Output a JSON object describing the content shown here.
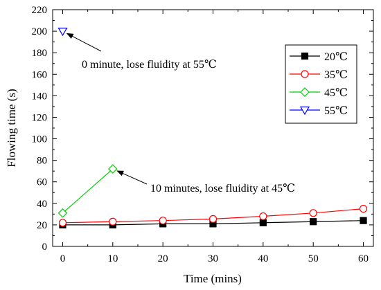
{
  "chart_data": {
    "type": "line",
    "title": "",
    "xlabel": "Time (mins)",
    "ylabel": "Flowing time (s)",
    "xlim": [
      -2,
      62
    ],
    "ylim": [
      0,
      220
    ],
    "xticks": [
      0,
      10,
      20,
      30,
      40,
      50,
      60
    ],
    "yticks": [
      0,
      20,
      40,
      60,
      80,
      100,
      120,
      140,
      160,
      180,
      200,
      220
    ],
    "grid": false,
    "legend": "right",
    "series": [
      {
        "name": "20℃",
        "color": "#000000",
        "marker": "square-filled",
        "x": [
          0,
          10,
          20,
          30,
          40,
          50,
          60
        ],
        "y": [
          20,
          20,
          21,
          21,
          22,
          23,
          24
        ]
      },
      {
        "name": "35℃",
        "color": "#ff0000",
        "marker": "circle-open",
        "x": [
          0,
          10,
          20,
          30,
          40,
          50,
          60
        ],
        "y": [
          22,
          23,
          24,
          25.5,
          28,
          31,
          35
        ]
      },
      {
        "name": "45℃",
        "color": "#00cc00",
        "marker": "diamond-open",
        "x": [
          0,
          10
        ],
        "y": [
          31,
          72
        ]
      },
      {
        "name": "55℃",
        "color": "#0000ff",
        "marker": "triangle-down-open",
        "x": [
          0
        ],
        "y": [
          200
        ]
      }
    ],
    "annotations": [
      {
        "text": "0 minute, lose fluidity at 55℃",
        "target": [
          0,
          200
        ]
      },
      {
        "text": "10 minutes, lose fluidity at 45℃",
        "target": [
          10,
          72
        ]
      }
    ]
  }
}
